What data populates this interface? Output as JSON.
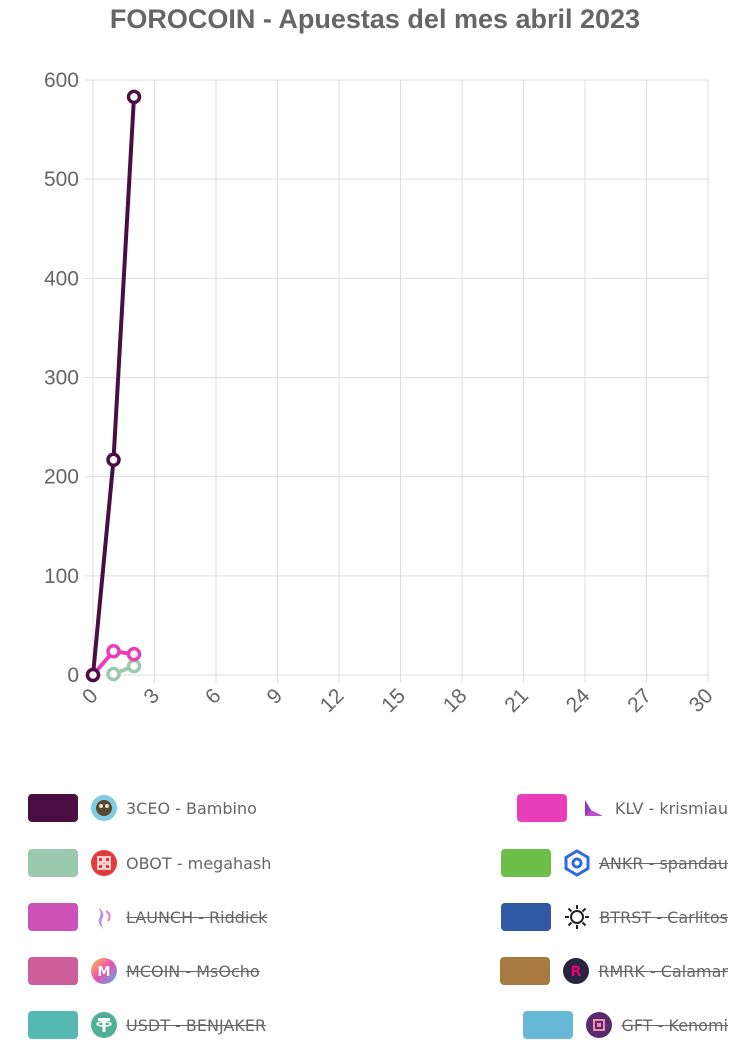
{
  "chart_data": {
    "type": "line",
    "title": "FOROCOIN - Apuestas del mes abril 2023",
    "xlabel": "",
    "ylabel": "",
    "xlim": [
      0,
      30
    ],
    "ylim": [
      0,
      600
    ],
    "x_ticks": [
      "0",
      "3",
      "6",
      "9",
      "12",
      "15",
      "18",
      "21",
      "24",
      "27",
      "30"
    ],
    "y_ticks": [
      "0",
      "100",
      "200",
      "300",
      "400",
      "500",
      "600"
    ],
    "grid": true,
    "legend_position": "bottom",
    "series": [
      {
        "name": "3CEO - Bambino",
        "color": "#4a0e45",
        "icon": "3ceo-logo-icon",
        "hidden": false,
        "points": [
          [
            0,
            0
          ],
          [
            1,
            217
          ],
          [
            2,
            583
          ]
        ]
      },
      {
        "name": "KLV - krismiau",
        "color": "#e93dba",
        "icon": "klv-logo-icon",
        "hidden": false,
        "points": [
          [
            0,
            0
          ],
          [
            1,
            24
          ],
          [
            2,
            21
          ]
        ]
      },
      {
        "name": "OBOT - megahash",
        "color": "#9bc9ad",
        "icon": "obot-logo-icon",
        "hidden": false,
        "points": [
          [
            1,
            1
          ],
          [
            2,
            9
          ]
        ]
      },
      {
        "name": "ANKR - spandau",
        "color": "#6cbf47",
        "icon": "ankr-logo-icon",
        "hidden": true,
        "points": []
      },
      {
        "name": "LAUNCH - Riddick",
        "color": "#cd52b8",
        "icon": "launch-logo-icon",
        "hidden": true,
        "points": []
      },
      {
        "name": "BTRST - Carlitos",
        "color": "#2f5aa3",
        "icon": "btrst-logo-icon",
        "hidden": true,
        "points": []
      },
      {
        "name": "MCOIN - MsOcho",
        "color": "#cc5f9a",
        "icon": "mcoin-logo-icon",
        "hidden": true,
        "points": []
      },
      {
        "name": "RMRK - Calamar",
        "color": "#a87a42",
        "icon": "rmrk-logo-icon",
        "hidden": true,
        "points": []
      },
      {
        "name": "USDT - BENJAKER",
        "color": "#56b9b1",
        "icon": "usdt-logo-icon",
        "hidden": true,
        "points": []
      },
      {
        "name": "GFT - Kenomi",
        "color": "#67b8d8",
        "icon": "gft-logo-icon",
        "hidden": true,
        "points": []
      }
    ]
  }
}
